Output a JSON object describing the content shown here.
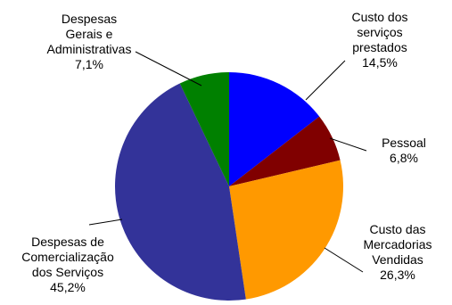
{
  "chart_data": {
    "type": "pie",
    "title": "",
    "slices": [
      {
        "lines": [
          "Custo dos",
          "serviços",
          "prestados"
        ],
        "value_label": "14,5%",
        "value": 14.5,
        "color": "#0000FF"
      },
      {
        "lines": [
          "Pessoal"
        ],
        "value_label": "6,8%",
        "value": 6.8,
        "color": "#800000"
      },
      {
        "lines": [
          "Custo das",
          "Mercadorias",
          "Vendidas"
        ],
        "value_label": "26,3%",
        "value": 26.3,
        "color": "#FF9900"
      },
      {
        "lines": [
          "Despesas de",
          "Comercialização",
          "dos Serviços"
        ],
        "value_label": "45,2%",
        "value": 45.2,
        "color": "#333399"
      },
      {
        "lines": [
          "Despesas",
          "Gerais e",
          "Administrativas"
        ],
        "value_label": "7,1%",
        "value": 7.1,
        "color": "#008000"
      }
    ]
  }
}
